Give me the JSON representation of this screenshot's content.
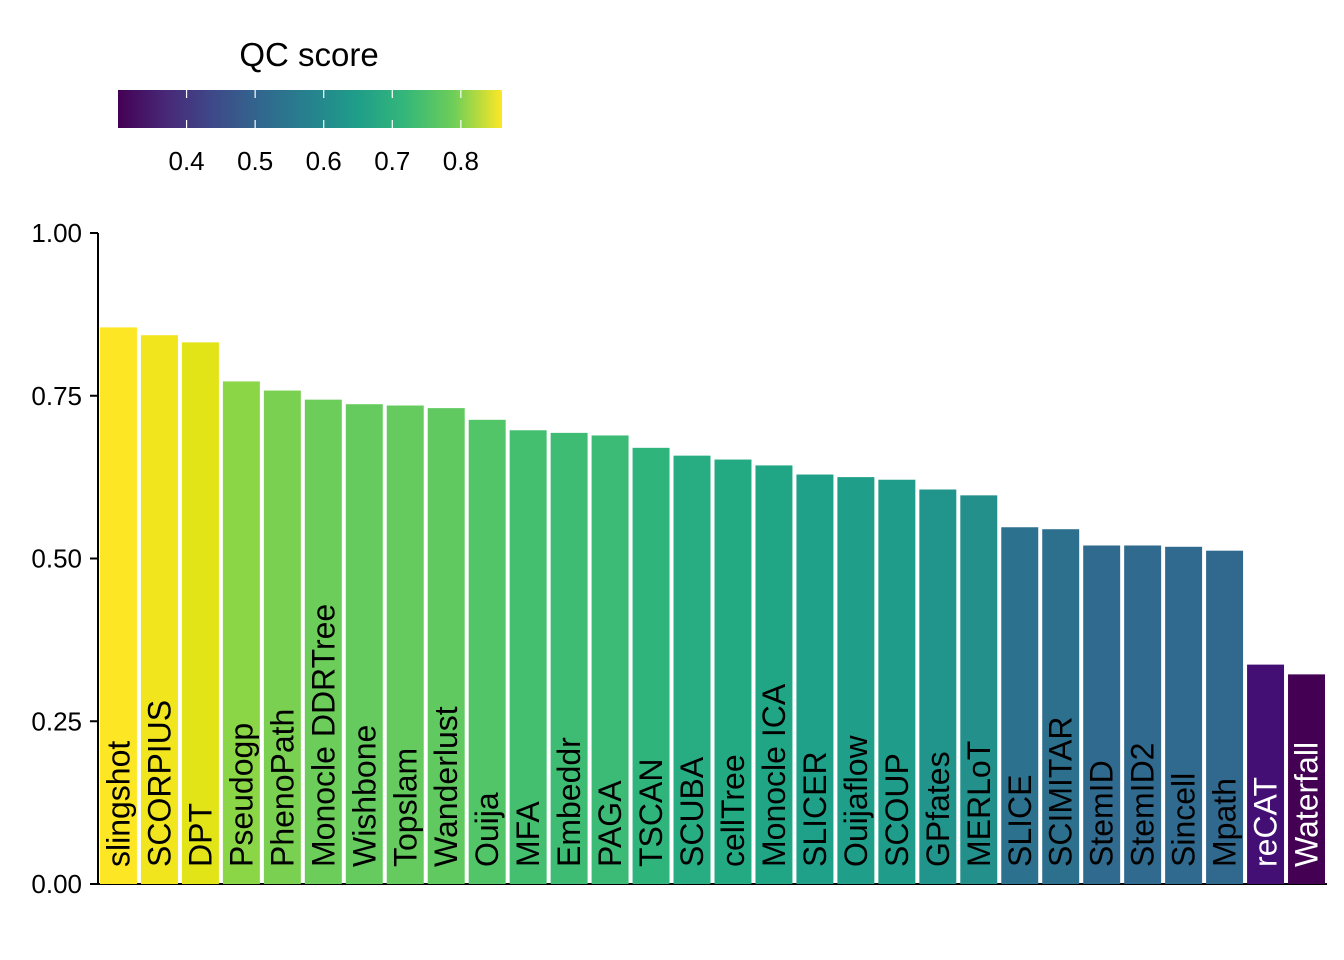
{
  "chart_data": {
    "type": "bar",
    "title": "",
    "xlabel": "",
    "ylabel": "",
    "ylim": [
      0,
      1
    ],
    "yticks": [
      "0.00",
      "0.25",
      "0.50",
      "0.75",
      "1.00"
    ],
    "ytick_values": [
      0,
      0.25,
      0.5,
      0.75,
      1.0
    ],
    "grid": false,
    "legend": {
      "title": "QC score",
      "placement": "top-left",
      "type": "colorbar",
      "palette": "viridis",
      "range": [
        0.3,
        0.86
      ],
      "ticks": [
        "0.4",
        "0.5",
        "0.6",
        "0.7",
        "0.8"
      ],
      "tick_values": [
        0.4,
        0.5,
        0.6,
        0.7,
        0.8
      ]
    },
    "categories": [
      "slingshot",
      "SCORPIUS",
      "DPT",
      "Pseudogp",
      "PhenoPath",
      "Monocle DDRTree",
      "Wishbone",
      "Topslam",
      "Wanderlust",
      "Ouija",
      "MFA",
      "Embeddr",
      "PAGA",
      "TSCAN",
      "SCUBA",
      "cellTree",
      "Monocle ICA",
      "SLICER",
      "Ouijaflow",
      "SCOUP",
      "GPfates",
      "MERLoT",
      "SLICE",
      "SCIMITAR",
      "StemID",
      "StemID2",
      "Sincell",
      "Mpath",
      "reCAT",
      "Waterfall"
    ],
    "values": [
      0.855,
      0.843,
      0.832,
      0.772,
      0.758,
      0.744,
      0.737,
      0.735,
      0.731,
      0.713,
      0.697,
      0.693,
      0.689,
      0.67,
      0.658,
      0.652,
      0.643,
      0.629,
      0.625,
      0.621,
      0.606,
      0.597,
      0.548,
      0.545,
      0.52,
      0.52,
      0.518,
      0.512,
      0.337,
      0.322
    ],
    "colors": [
      "#fde725",
      "#f1e51d",
      "#e2e418",
      "#8bd646",
      "#7ad151",
      "#6ccd5a",
      "#65cb5e",
      "#65cb5e",
      "#60ca60",
      "#52c569",
      "#44bf70",
      "#3fbc73",
      "#3bbb75",
      "#2fb47c",
      "#27ad81",
      "#24aa83",
      "#21a685",
      "#1fa088",
      "#1f9e89",
      "#1f9d8a",
      "#21948b",
      "#23908c",
      "#2c718e",
      "#2d708e",
      "#306a8e",
      "#306a8e",
      "#306a8e",
      "#31688e",
      "#440f75",
      "#440154"
    ],
    "label_colors": [
      "#000000",
      "#000000",
      "#000000",
      "#000000",
      "#000000",
      "#000000",
      "#000000",
      "#000000",
      "#000000",
      "#000000",
      "#000000",
      "#000000",
      "#000000",
      "#000000",
      "#000000",
      "#000000",
      "#000000",
      "#000000",
      "#000000",
      "#000000",
      "#000000",
      "#000000",
      "#000000",
      "#000000",
      "#000000",
      "#000000",
      "#000000",
      "#000000",
      "#ffffff",
      "#ffffff"
    ]
  }
}
